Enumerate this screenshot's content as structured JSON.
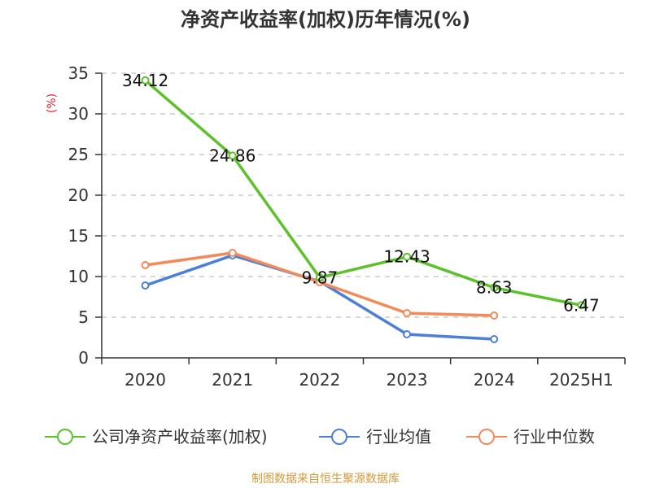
{
  "chart_data": {
    "type": "line",
    "title": "净资产收益率(加权)历年情况(%)",
    "ylabel": "(%)",
    "xlabel": "",
    "categories": [
      "2020",
      "2021",
      "2022",
      "2023",
      "2024",
      "2025H1"
    ],
    "ylim": [
      0,
      35
    ],
    "yticks": [
      0,
      5,
      10,
      15,
      20,
      25,
      30,
      35
    ],
    "grid": "horizontal dashed",
    "legend_position": "bottom",
    "series": [
      {
        "name": "公司净资产收益率(加权)",
        "color": "#5cc12a",
        "values": [
          34.12,
          24.86,
          9.87,
          12.43,
          8.63,
          6.47
        ],
        "labels": [
          "34.12",
          "24.86",
          "9.87",
          "12.43",
          "8.63",
          "6.47"
        ]
      },
      {
        "name": "行业均值",
        "color": "#4b7fd8",
        "values": [
          8.9,
          12.6,
          9.4,
          2.9,
          2.3,
          null
        ]
      },
      {
        "name": "行业中位数",
        "color": "#f28a5a",
        "values": [
          11.4,
          12.9,
          9.3,
          5.5,
          5.2,
          null
        ]
      }
    ]
  },
  "source": "制图数据来自恒生聚源数据库"
}
